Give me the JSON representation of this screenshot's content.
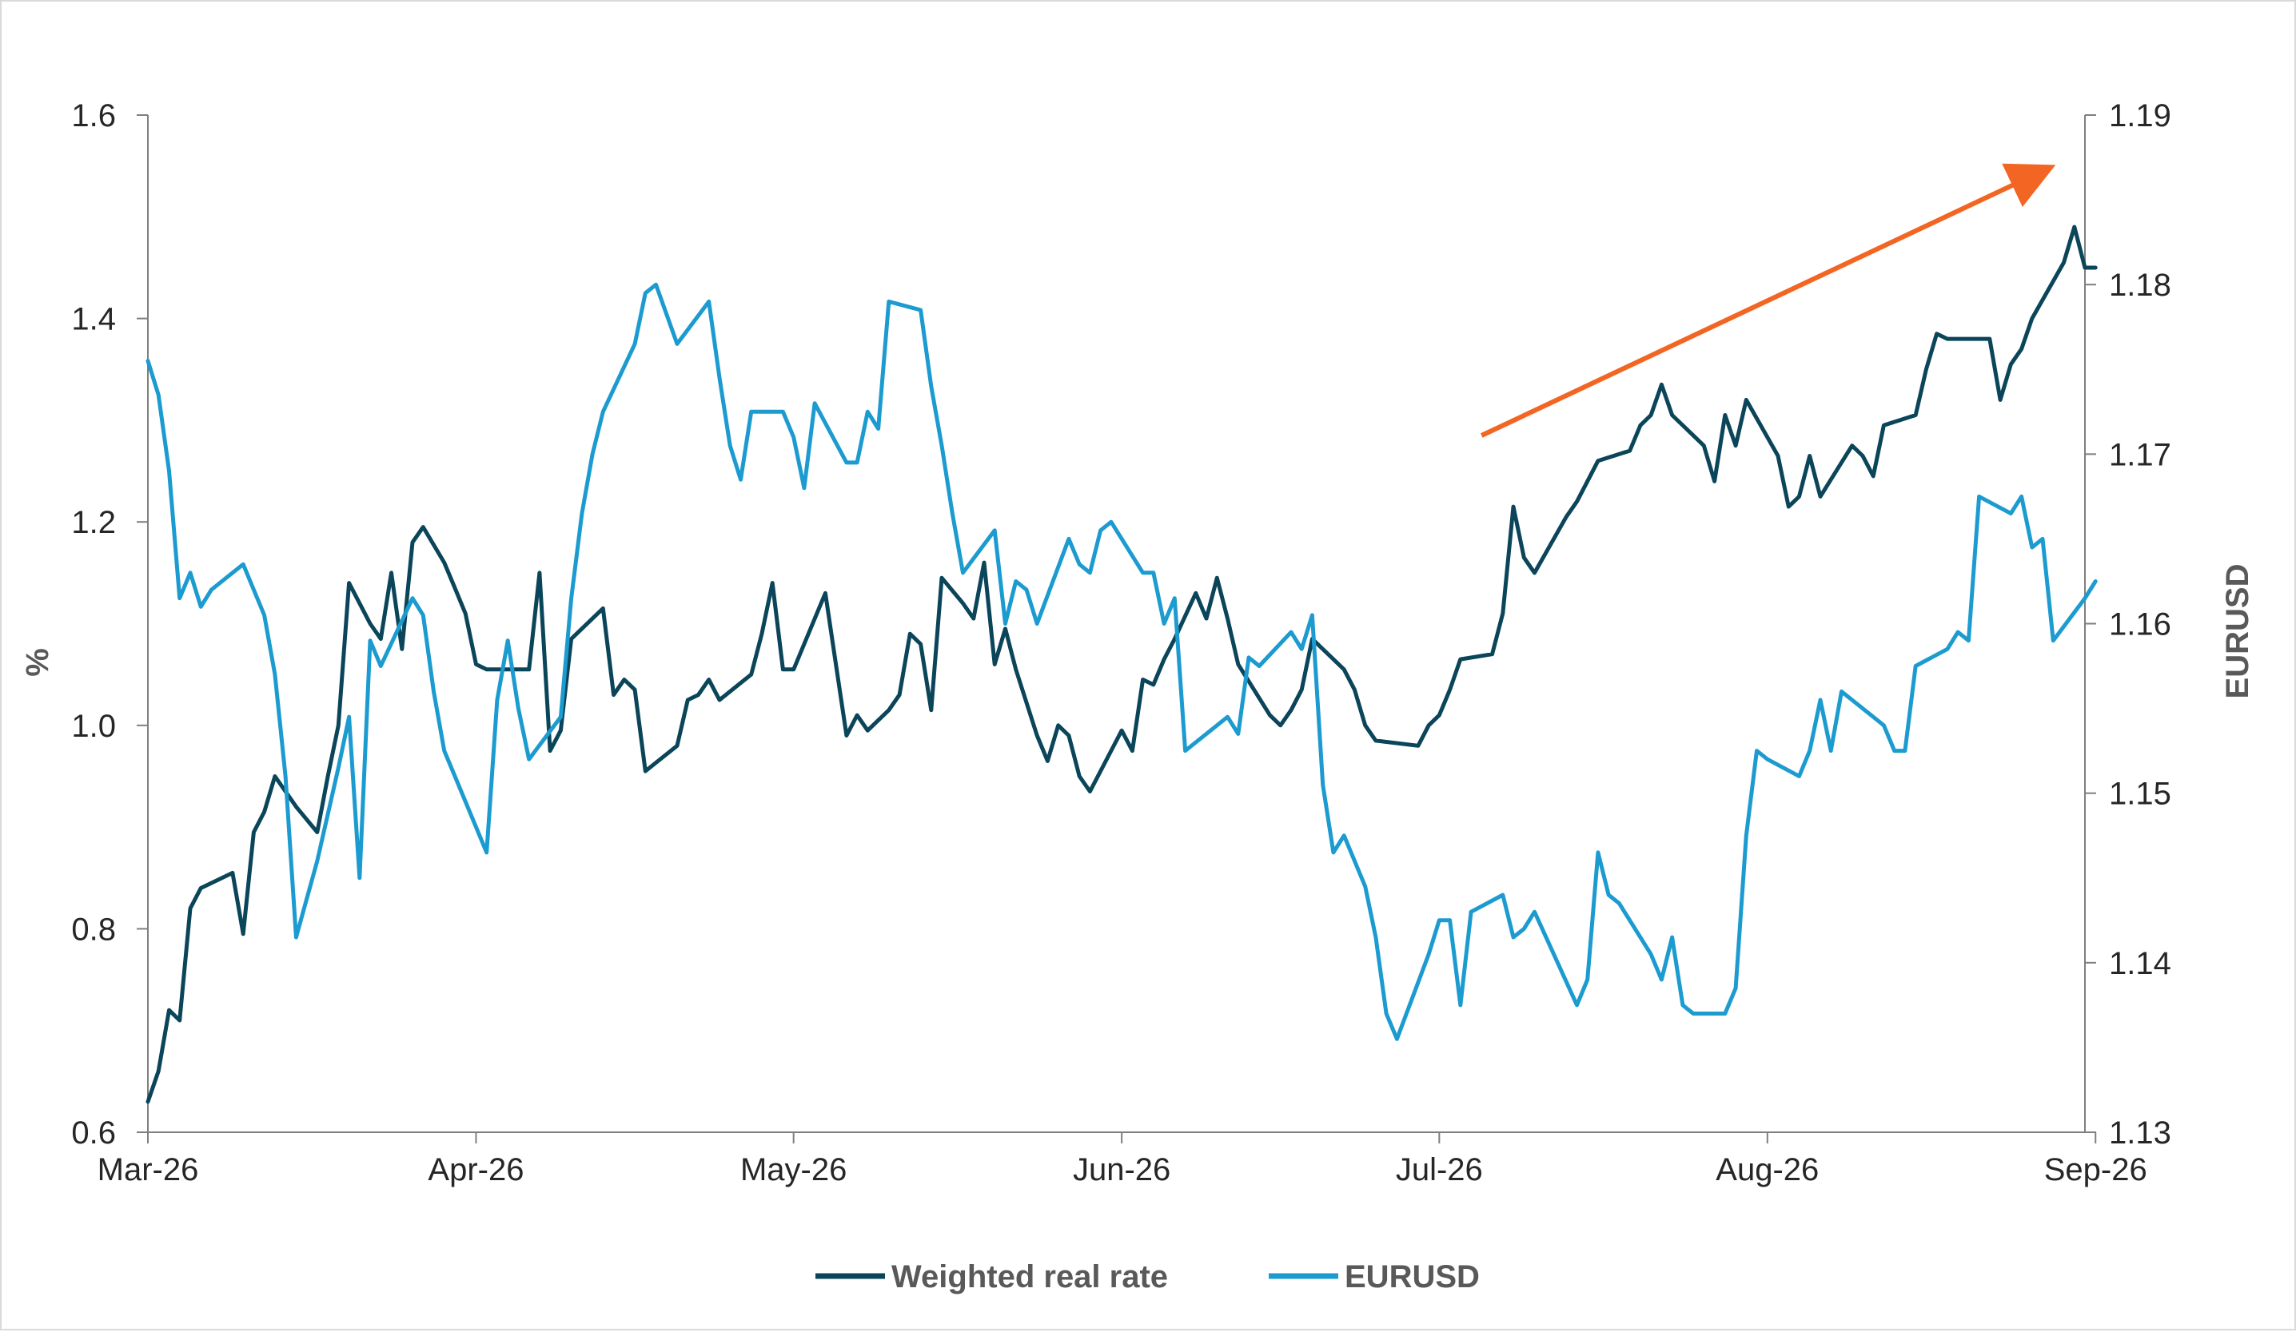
{
  "chart_data": {
    "type": "line",
    "title": "",
    "left_axis": {
      "label": "%",
      "ylim": [
        0.6,
        1.6
      ],
      "ticks": [
        "0.6",
        "0.8",
        "1.0",
        "1.2",
        "1.4",
        "1.6"
      ]
    },
    "right_axis": {
      "label": "EURUSD",
      "ylim": [
        1.13,
        1.19
      ],
      "ticks": [
        "1.13",
        "1.14",
        "1.15",
        "1.16",
        "1.17",
        "1.18",
        "1.19"
      ]
    },
    "x_axis": {
      "categories": [
        "Mar-26",
        "Apr-26",
        "May-26",
        "Jun-26",
        "Jul-26",
        "Aug-26",
        "Sep-26"
      ],
      "xlim": [
        0,
        183
      ]
    },
    "grid": false,
    "legend": {
      "placement": "bottom"
    },
    "annotations": [
      {
        "type": "arrow",
        "color": "#f26522",
        "from": {
          "x": 126,
          "y": 1.285
        },
        "to": {
          "x": 179,
          "y": 1.545
        }
      }
    ],
    "series": [
      {
        "name": "Weighted real rate",
        "axis": "left",
        "color": "#0b4559",
        "points": [
          [
            0,
            0.63
          ],
          [
            1,
            0.66
          ],
          [
            2,
            0.72
          ],
          [
            3,
            0.71
          ],
          [
            4,
            0.82
          ],
          [
            5,
            0.84
          ],
          [
            6,
            0.845
          ],
          [
            8,
            0.855
          ],
          [
            9,
            0.795
          ],
          [
            10,
            0.895
          ],
          [
            11,
            0.915
          ],
          [
            12,
            0.95
          ],
          [
            14,
            0.92
          ],
          [
            16,
            0.895
          ],
          [
            17,
            0.95
          ],
          [
            18,
            1.0
          ],
          [
            19,
            1.14
          ],
          [
            21,
            1.1
          ],
          [
            22,
            1.085
          ],
          [
            23,
            1.15
          ],
          [
            24,
            1.075
          ],
          [
            25,
            1.18
          ],
          [
            26,
            1.195
          ],
          [
            28,
            1.16
          ],
          [
            29,
            1.135
          ],
          [
            30,
            1.11
          ],
          [
            31,
            1.06
          ],
          [
            32,
            1.055
          ],
          [
            35,
            1.055
          ],
          [
            36,
            1.055
          ],
          [
            37,
            1.15
          ],
          [
            38,
            0.975
          ],
          [
            39,
            0.995
          ],
          [
            40,
            1.085
          ],
          [
            42,
            1.105
          ],
          [
            43,
            1.115
          ],
          [
            44,
            1.03
          ],
          [
            45,
            1.045
          ],
          [
            46,
            1.035
          ],
          [
            47,
            0.955
          ],
          [
            50,
            0.98
          ],
          [
            51,
            1.025
          ],
          [
            52,
            1.03
          ],
          [
            53,
            1.045
          ],
          [
            54,
            1.025
          ],
          [
            57,
            1.05
          ],
          [
            58,
            1.09
          ],
          [
            59,
            1.14
          ],
          [
            60,
            1.055
          ],
          [
            61,
            1.055
          ],
          [
            64,
            1.13
          ],
          [
            65,
            1.06
          ],
          [
            66,
            0.99
          ],
          [
            67,
            1.01
          ],
          [
            68,
            0.995
          ],
          [
            70,
            1.015
          ],
          [
            71,
            1.03
          ],
          [
            72,
            1.09
          ],
          [
            73,
            1.08
          ],
          [
            74,
            1.015
          ],
          [
            75,
            1.145
          ],
          [
            77,
            1.12
          ],
          [
            78,
            1.105
          ],
          [
            79,
            1.16
          ],
          [
            80,
            1.06
          ],
          [
            81,
            1.095
          ],
          [
            82,
            1.055
          ],
          [
            84,
            0.99
          ],
          [
            85,
            0.965
          ],
          [
            86,
            1.0
          ],
          [
            87,
            0.99
          ],
          [
            88,
            0.95
          ],
          [
            89,
            0.935
          ],
          [
            92,
            0.995
          ],
          [
            93,
            0.975
          ],
          [
            94,
            1.045
          ],
          [
            95,
            1.04
          ],
          [
            96,
            1.065
          ],
          [
            97,
            1.085
          ],
          [
            99,
            1.13
          ],
          [
            100,
            1.105
          ],
          [
            101,
            1.145
          ],
          [
            102,
            1.105
          ],
          [
            103,
            1.06
          ],
          [
            106,
            1.01
          ],
          [
            107,
            1.0
          ],
          [
            108,
            1.015
          ],
          [
            109,
            1.035
          ],
          [
            110,
            1.085
          ],
          [
            113,
            1.055
          ],
          [
            114,
            1.035
          ],
          [
            115,
            1.0
          ],
          [
            116,
            0.985
          ],
          [
            120,
            0.98
          ],
          [
            121,
            1.0
          ],
          [
            122,
            1.01
          ],
          [
            123,
            1.035
          ],
          [
            124,
            1.065
          ],
          [
            127,
            1.07
          ],
          [
            128,
            1.11
          ],
          [
            129,
            1.215
          ],
          [
            130,
            1.165
          ],
          [
            131,
            1.15
          ],
          [
            134,
            1.205
          ],
          [
            135,
            1.22
          ],
          [
            136,
            1.24
          ],
          [
            137,
            1.26
          ],
          [
            140,
            1.27
          ],
          [
            141,
            1.295
          ],
          [
            142,
            1.305
          ],
          [
            143,
            1.335
          ],
          [
            144,
            1.305
          ],
          [
            147,
            1.275
          ],
          [
            148,
            1.24
          ],
          [
            149,
            1.305
          ],
          [
            150,
            1.275
          ],
          [
            151,
            1.32
          ],
          [
            154,
            1.265
          ],
          [
            155,
            1.215
          ],
          [
            156,
            1.225
          ],
          [
            157,
            1.265
          ],
          [
            158,
            1.225
          ],
          [
            161,
            1.275
          ],
          [
            162,
            1.265
          ],
          [
            163,
            1.245
          ],
          [
            164,
            1.295
          ],
          [
            167,
            1.305
          ],
          [
            168,
            1.35
          ],
          [
            169,
            1.385
          ],
          [
            170,
            1.38
          ],
          [
            171,
            1.38
          ],
          [
            174,
            1.38
          ],
          [
            175,
            1.32
          ],
          [
            176,
            1.355
          ],
          [
            177,
            1.37
          ],
          [
            178,
            1.4
          ],
          [
            181,
            1.455
          ],
          [
            182,
            1.49
          ],
          [
            183,
            1.45
          ],
          [
            184,
            1.45
          ]
        ]
      },
      {
        "name": "EURUSD",
        "axis": "right",
        "color": "#1c9bd0",
        "points": [
          [
            0,
            1.1755
          ],
          [
            1,
            1.1735
          ],
          [
            2,
            1.169
          ],
          [
            3,
            1.1615
          ],
          [
            4,
            1.163
          ],
          [
            5,
            1.161
          ],
          [
            6,
            1.162
          ],
          [
            9,
            1.1635
          ],
          [
            10,
            1.162
          ],
          [
            11,
            1.1605
          ],
          [
            12,
            1.157
          ],
          [
            13,
            1.151
          ],
          [
            14,
            1.1415
          ],
          [
            16,
            1.146
          ],
          [
            18,
            1.1515
          ],
          [
            19,
            1.1545
          ],
          [
            20,
            1.145
          ],
          [
            21,
            1.159
          ],
          [
            22,
            1.1575
          ],
          [
            25,
            1.1615
          ],
          [
            26,
            1.1605
          ],
          [
            27,
            1.156
          ],
          [
            28,
            1.1525
          ],
          [
            29,
            1.151
          ],
          [
            32,
            1.1465
          ],
          [
            33,
            1.1555
          ],
          [
            34,
            1.159
          ],
          [
            35,
            1.155
          ],
          [
            36,
            1.152
          ],
          [
            39,
            1.1545
          ],
          [
            40,
            1.1615
          ],
          [
            41,
            1.1665
          ],
          [
            42,
            1.17
          ],
          [
            43,
            1.1725
          ],
          [
            46,
            1.1765
          ],
          [
            47,
            1.1795
          ],
          [
            48,
            1.18
          ],
          [
            50,
            1.1765
          ],
          [
            53,
            1.179
          ],
          [
            54,
            1.1745
          ],
          [
            55,
            1.1705
          ],
          [
            56,
            1.1685
          ],
          [
            57,
            1.1725
          ],
          [
            60,
            1.1725
          ],
          [
            61,
            1.171
          ],
          [
            62,
            1.168
          ],
          [
            63,
            1.173
          ],
          [
            66,
            1.1695
          ],
          [
            67,
            1.1695
          ],
          [
            68,
            1.1725
          ],
          [
            69,
            1.1715
          ],
          [
            70,
            1.179
          ],
          [
            73,
            1.1785
          ],
          [
            74,
            1.174
          ],
          [
            75,
            1.1705
          ],
          [
            76,
            1.1665
          ],
          [
            77,
            1.163
          ],
          [
            80,
            1.1655
          ],
          [
            81,
            1.16
          ],
          [
            82,
            1.1625
          ],
          [
            83,
            1.162
          ],
          [
            84,
            1.16
          ],
          [
            87,
            1.165
          ],
          [
            88,
            1.1635
          ],
          [
            89,
            1.163
          ],
          [
            90,
            1.1655
          ],
          [
            91,
            1.166
          ],
          [
            94,
            1.163
          ],
          [
            95,
            1.163
          ],
          [
            96,
            1.16
          ],
          [
            97,
            1.1615
          ],
          [
            98,
            1.1525
          ],
          [
            101,
            1.154
          ],
          [
            102,
            1.1545
          ],
          [
            103,
            1.1535
          ],
          [
            104,
            1.158
          ],
          [
            105,
            1.1575
          ],
          [
            108,
            1.1595
          ],
          [
            109,
            1.1585
          ],
          [
            110,
            1.1605
          ],
          [
            111,
            1.1505
          ],
          [
            112,
            1.1465
          ],
          [
            113,
            1.1475
          ],
          [
            115,
            1.1445
          ],
          [
            116,
            1.1415
          ],
          [
            117,
            1.137
          ],
          [
            118,
            1.1355
          ],
          [
            121,
            1.1405
          ],
          [
            122,
            1.1425
          ],
          [
            123,
            1.1425
          ],
          [
            124,
            1.1375
          ],
          [
            125,
            1.143
          ],
          [
            128,
            1.144
          ],
          [
            129,
            1.1415
          ],
          [
            130,
            1.142
          ],
          [
            131,
            1.143
          ],
          [
            135,
            1.1375
          ],
          [
            136,
            1.139
          ],
          [
            137,
            1.1465
          ],
          [
            138,
            1.144
          ],
          [
            139,
            1.1435
          ],
          [
            142,
            1.1405
          ],
          [
            143,
            1.139
          ],
          [
            144,
            1.1415
          ],
          [
            145,
            1.1375
          ],
          [
            146,
            1.137
          ],
          [
            149,
            1.137
          ],
          [
            150,
            1.1385
          ],
          [
            151,
            1.1475
          ],
          [
            152,
            1.1525
          ],
          [
            153,
            1.152
          ],
          [
            156,
            1.151
          ],
          [
            157,
            1.1525
          ],
          [
            158,
            1.1555
          ],
          [
            159,
            1.1525
          ],
          [
            160,
            1.156
          ],
          [
            163,
            1.1545
          ],
          [
            164,
            1.154
          ],
          [
            165,
            1.1525
          ],
          [
            166,
            1.1525
          ],
          [
            167,
            1.1575
          ],
          [
            170,
            1.1585
          ],
          [
            171,
            1.1595
          ],
          [
            172,
            1.159
          ],
          [
            173,
            1.1675
          ],
          [
            176,
            1.1665
          ],
          [
            177,
            1.1675
          ],
          [
            178,
            1.1645
          ],
          [
            179,
            1.165
          ],
          [
            180,
            1.159
          ],
          [
            183,
            1.1615
          ],
          [
            184,
            1.1625
          ]
        ]
      }
    ]
  }
}
